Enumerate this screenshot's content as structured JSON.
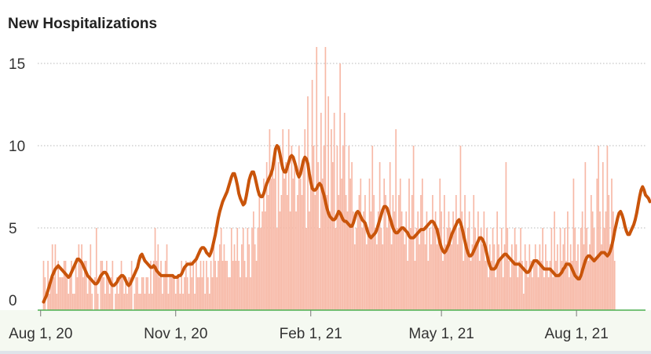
{
  "chart_data": {
    "type": "bar",
    "title": "New Hospitalizations",
    "xlabel": "",
    "ylabel": "",
    "ylim": [
      0,
      16
    ],
    "yticks": [
      0,
      5,
      10,
      15
    ],
    "x_range": [
      "2020-07-30",
      "2021-09-17"
    ],
    "grid": "horizontal dotted",
    "x_ticks": [
      {
        "date": "2020-08-01",
        "label": "Aug 1, 20"
      },
      {
        "date": "2020-11-01",
        "label": "Nov 1, 20"
      },
      {
        "date": "2021-02-01",
        "label": "Feb 1, 21"
      },
      {
        "date": "2021-05-01",
        "label": "May 1, 21"
      },
      {
        "date": "2021-08-01",
        "label": "Aug 1, 21"
      }
    ],
    "series": [
      {
        "type": "bar",
        "color": "#f7b9a7",
        "start_date": "2020-08-03",
        "values": [
          3,
          2,
          0,
          3,
          1,
          2,
          4,
          2,
          4,
          1,
          3,
          2,
          2,
          2,
          3,
          3,
          2,
          1,
          2,
          3,
          1,
          1,
          3,
          2,
          4,
          3,
          4,
          2,
          3,
          3,
          1,
          2,
          4,
          1,
          0,
          2,
          5,
          1,
          0,
          3,
          3,
          2,
          1,
          3,
          2,
          1,
          2,
          3,
          0,
          1,
          2,
          1,
          2,
          3,
          2,
          1,
          2,
          1,
          2,
          2,
          3,
          0,
          1,
          2,
          2,
          1,
          1,
          2,
          2,
          1,
          2,
          2,
          1,
          3,
          1,
          3,
          5,
          3,
          4,
          2,
          3,
          1,
          2,
          3,
          4,
          1,
          2,
          2,
          2,
          2,
          1,
          2,
          2,
          1,
          3,
          1,
          2,
          3,
          2,
          1,
          3,
          2,
          3,
          1,
          3,
          2,
          2,
          3,
          2,
          3,
          1,
          3,
          2,
          1,
          3,
          2,
          4,
          3,
          2,
          3,
          4,
          5,
          3,
          4,
          3,
          3,
          2,
          2,
          5,
          3,
          4,
          3,
          5,
          3,
          2,
          4,
          5,
          3,
          2,
          5,
          4,
          2,
          5,
          6,
          4,
          3,
          5,
          7,
          5,
          6,
          8,
          6,
          9,
          7,
          11,
          8,
          9,
          8,
          10,
          5,
          9,
          6,
          7,
          11,
          8,
          9,
          7,
          11,
          6,
          10,
          8,
          9,
          6,
          7,
          10,
          8,
          7,
          9,
          11,
          5,
          13,
          6,
          8,
          14,
          10,
          7,
          16,
          9,
          5,
          12,
          8,
          10,
          16,
          7,
          13,
          6,
          11,
          9,
          12,
          5,
          10,
          7,
          15,
          8,
          10,
          12,
          7,
          6,
          10,
          8,
          9,
          6,
          4,
          5,
          6,
          7,
          8,
          5,
          6,
          7,
          4,
          5,
          8,
          6,
          10,
          7,
          5,
          4,
          6,
          9,
          5,
          4,
          8,
          7,
          5,
          6,
          9,
          4,
          7,
          6,
          11,
          5,
          7,
          8,
          6,
          5,
          4,
          6,
          3,
          8,
          5,
          7,
          10,
          3,
          5,
          6,
          4,
          7,
          8,
          5,
          4,
          6,
          3,
          5,
          4,
          7,
          5,
          6,
          4,
          5,
          8,
          6,
          3,
          7,
          4,
          5,
          6,
          5,
          4,
          6,
          5,
          7,
          4,
          5,
          10,
          6,
          3,
          7,
          4,
          5,
          6,
          3,
          4,
          7,
          5,
          4,
          6,
          3,
          5,
          4,
          6,
          3,
          5,
          2,
          4,
          3,
          5,
          4,
          2,
          6,
          4,
          3,
          5,
          2,
          4,
          9,
          5,
          3,
          2,
          4,
          3,
          5,
          4,
          2,
          3,
          5,
          3,
          1,
          4,
          3,
          2,
          4,
          3,
          2,
          3,
          4,
          3,
          2,
          4,
          3,
          5,
          2,
          4,
          3,
          2,
          3,
          5,
          2,
          6,
          3,
          4,
          2,
          5,
          3,
          4,
          5,
          3,
          6,
          2,
          4,
          3,
          8,
          5,
          3,
          4,
          2,
          5,
          6,
          4,
          9,
          5,
          3,
          4,
          7,
          6,
          5,
          3,
          8,
          10,
          6,
          4,
          9,
          5,
          6,
          10,
          7,
          4,
          8,
          6,
          3
        ]
      },
      {
        "type": "line",
        "color": "#c9540a",
        "start_date": "2020-08-03",
        "values": [
          0.5,
          0.7,
          0.9,
          1.2,
          1.5,
          1.8,
          2.1,
          2.3,
          2.5,
          2.6,
          2.7,
          2.6,
          2.5,
          2.4,
          2.3,
          2.2,
          2.1,
          2.0,
          2.1,
          2.3,
          2.5,
          2.7,
          2.9,
          3.1,
          3.1,
          3.0,
          2.9,
          2.7,
          2.5,
          2.3,
          2.1,
          2.0,
          1.9,
          1.8,
          1.7,
          1.6,
          1.6,
          1.7,
          1.9,
          2.1,
          2.2,
          2.3,
          2.3,
          2.2,
          2.0,
          1.8,
          1.6,
          1.5,
          1.5,
          1.6,
          1.7,
          1.9,
          2.0,
          2.1,
          2.1,
          2.0,
          1.8,
          1.6,
          1.5,
          1.6,
          1.8,
          2.0,
          2.2,
          2.4,
          2.6,
          3.0,
          3.3,
          3.4,
          3.2,
          3.0,
          2.9,
          2.8,
          2.7,
          2.6,
          2.6,
          2.7,
          2.6,
          2.4,
          2.3,
          2.2,
          2.1,
          2.1,
          2.1,
          2.1,
          2.1,
          2.1,
          2.1,
          2.1,
          2.1,
          2.0,
          2.0,
          2.0,
          2.1,
          2.1,
          2.2,
          2.4,
          2.6,
          2.7,
          2.8,
          2.8,
          2.8,
          2.8,
          2.9,
          3.0,
          3.1,
          3.3,
          3.5,
          3.7,
          3.8,
          3.8,
          3.7,
          3.5,
          3.4,
          3.3,
          3.5,
          3.8,
          4.2,
          4.6,
          5.1,
          5.6,
          6.0,
          6.3,
          6.6,
          6.8,
          7.0,
          7.2,
          7.5,
          7.8,
          8.1,
          8.3,
          8.3,
          8.0,
          7.6,
          7.1,
          6.8,
          6.6,
          6.4,
          6.5,
          6.9,
          7.4,
          7.9,
          8.2,
          8.4,
          8.4,
          8.1,
          7.7,
          7.3,
          7.0,
          6.9,
          6.9,
          7.1,
          7.4,
          7.7,
          7.9,
          8.1,
          8.3,
          8.6,
          9.2,
          9.8,
          10.0,
          9.9,
          9.5,
          9.0,
          8.6,
          8.4,
          8.4,
          8.7,
          9.0,
          9.3,
          9.4,
          9.3,
          9.0,
          8.7,
          8.3,
          8.1,
          8.3,
          8.7,
          9.1,
          9.3,
          9.2,
          8.9,
          8.3,
          7.8,
          7.4,
          7.3,
          7.3,
          7.4,
          7.6,
          7.7,
          7.6,
          7.3,
          7.0,
          6.6,
          6.2,
          5.9,
          5.7,
          5.6,
          5.5,
          5.5,
          5.6,
          5.8,
          6.0,
          5.9,
          5.7,
          5.5,
          5.4,
          5.4,
          5.3,
          5.2,
          5.1,
          5.1,
          5.3,
          5.6,
          5.9,
          6.0,
          5.9,
          5.7,
          5.5,
          5.4,
          5.3,
          5.0,
          4.7,
          4.5,
          4.4,
          4.5,
          4.6,
          4.7,
          4.9,
          5.2,
          5.5,
          5.8,
          6.1,
          6.3,
          6.3,
          6.2,
          5.9,
          5.6,
          5.3,
          5.0,
          4.8,
          4.7,
          4.7,
          4.8,
          4.9,
          5.0,
          5.0,
          4.9,
          4.8,
          4.7,
          4.5,
          4.4,
          4.4,
          4.4,
          4.5,
          4.6,
          4.7,
          4.8,
          4.9,
          4.9,
          4.9,
          5.0,
          5.1,
          5.2,
          5.3,
          5.4,
          5.4,
          5.3,
          5.1,
          4.9,
          4.5,
          4.1,
          3.8,
          3.6,
          3.5,
          3.6,
          3.8,
          4.0,
          4.3,
          4.6,
          4.8,
          5.0,
          5.2,
          5.4,
          5.5,
          5.3,
          5.0,
          4.6,
          4.2,
          3.8,
          3.5,
          3.3,
          3.3,
          3.4,
          3.6,
          3.8,
          4.0,
          4.2,
          4.4,
          4.4,
          4.3,
          4.1,
          3.8,
          3.4,
          3.0,
          2.7,
          2.5,
          2.5,
          2.5,
          2.6,
          2.8,
          3.0,
          3.1,
          3.2,
          3.3,
          3.4,
          3.4,
          3.3,
          3.2,
          3.1,
          3.0,
          2.9,
          2.8,
          2.8,
          2.8,
          2.8,
          2.7,
          2.6,
          2.5,
          2.4,
          2.3,
          2.3,
          2.4,
          2.6,
          2.8,
          3.0,
          3.0,
          3.0,
          2.9,
          2.8,
          2.7,
          2.6,
          2.5,
          2.5,
          2.5,
          2.5,
          2.5,
          2.4,
          2.3,
          2.2,
          2.1,
          2.1,
          2.1,
          2.2,
          2.3,
          2.5,
          2.6,
          2.8,
          2.8,
          2.8,
          2.7,
          2.5,
          2.3,
          2.1,
          2.0,
          1.9,
          1.9,
          2.1,
          2.4,
          2.7,
          3.0,
          3.2,
          3.3,
          3.3,
          3.2,
          3.1,
          3.0,
          3.1,
          3.2,
          3.3,
          3.4,
          3.5,
          3.5,
          3.5,
          3.4,
          3.3,
          3.4,
          3.6,
          3.9,
          4.3,
          4.8,
          5.2,
          5.6,
          5.9,
          6.0,
          5.8,
          5.5,
          5.1,
          4.8,
          4.6,
          4.6,
          4.8,
          5.0,
          5.2,
          5.5,
          5.9,
          6.4,
          6.9,
          7.3,
          7.5,
          7.3,
          7.0,
          6.9,
          6.8,
          6.6
        ]
      }
    ]
  }
}
